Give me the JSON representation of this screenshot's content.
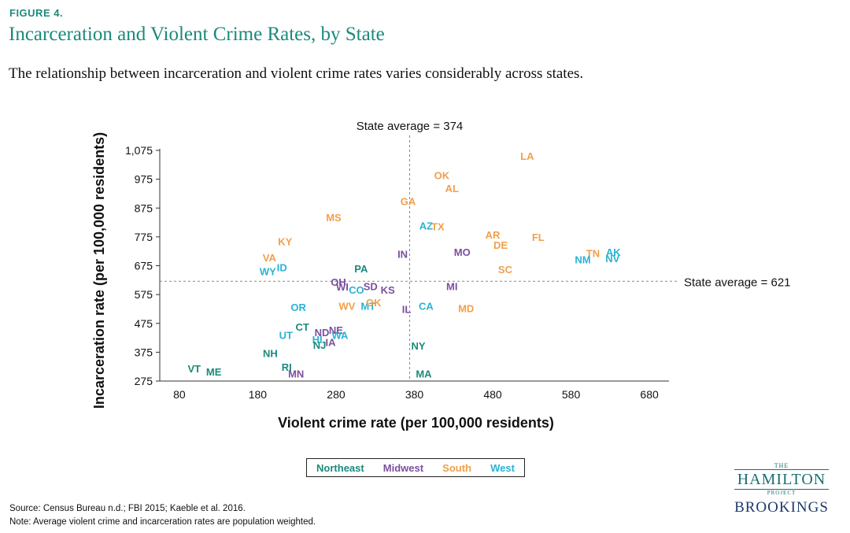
{
  "figure_label": "FIGURE 4.",
  "title": "Incarceration and Violent Crime Rates, by State",
  "subtitle": "The relationship between incarceration and violent crime rates varies considerably across states.",
  "source": "Source: Census Bureau n.d.; FBI 2015; Kaeble et al. 2016.",
  "note": "Note: Average violent crime and incarceration rates are population weighted.",
  "logo": {
    "the": "THE",
    "hamilton": "HAMILTON",
    "project": "PROJECT",
    "brookings": "BROOKINGS"
  },
  "colors": {
    "Northeast": "#1a8a7c",
    "Midwest": "#7b4f9e",
    "South": "#f0a04b",
    "West": "#29b3d4"
  },
  "chart_data": {
    "type": "scatter",
    "xlabel": "Violent crime rate (per 100,000 residents)",
    "ylabel": "Incarceration rate (per 100,000 residents)",
    "xlim": [
      55,
      705
    ],
    "ylim": [
      275,
      1075
    ],
    "x_ticks": [
      80,
      180,
      280,
      380,
      480,
      580,
      680
    ],
    "y_ticks": [
      {
        "value": 275,
        "label": "275"
      },
      {
        "value": 375,
        "label": "375"
      },
      {
        "value": 475,
        "label": "475"
      },
      {
        "value": 575,
        "label": "575"
      },
      {
        "value": 675,
        "label": "675"
      },
      {
        "value": 775,
        "label": "775"
      },
      {
        "value": 875,
        "label": "875"
      },
      {
        "value": 975,
        "label": "975"
      },
      {
        "value": 1075,
        "label": "1,075"
      }
    ],
    "reference_lines": [
      {
        "axis": "x",
        "value": 374,
        "label": "State average = 374"
      },
      {
        "axis": "y",
        "value": 621,
        "label": "State average = 621"
      }
    ],
    "legend": [
      "Northeast",
      "Midwest",
      "South",
      "West"
    ],
    "points": [
      {
        "label": "LA",
        "region": "South",
        "x": 524,
        "y": 1055
      },
      {
        "label": "OK",
        "region": "South",
        "x": 415,
        "y": 988
      },
      {
        "label": "AL",
        "region": "South",
        "x": 428,
        "y": 942
      },
      {
        "label": "GA",
        "region": "South",
        "x": 372,
        "y": 897
      },
      {
        "label": "MS",
        "region": "South",
        "x": 277,
        "y": 842
      },
      {
        "label": "AZ",
        "region": "West",
        "x": 395,
        "y": 813
      },
      {
        "label": "TX",
        "region": "South",
        "x": 410,
        "y": 810
      },
      {
        "label": "AR",
        "region": "South",
        "x": 480,
        "y": 781
      },
      {
        "label": "FL",
        "region": "South",
        "x": 538,
        "y": 773
      },
      {
        "label": "DE",
        "region": "South",
        "x": 490,
        "y": 746
      },
      {
        "label": "KY",
        "region": "South",
        "x": 215,
        "y": 758
      },
      {
        "label": "IN",
        "region": "Midwest",
        "x": 365,
        "y": 714
      },
      {
        "label": "MO",
        "region": "Midwest",
        "x": 441,
        "y": 722
      },
      {
        "label": "TN",
        "region": "South",
        "x": 608,
        "y": 718
      },
      {
        "label": "AK",
        "region": "West",
        "x": 634,
        "y": 721
      },
      {
        "label": "NM",
        "region": "West",
        "x": 595,
        "y": 696
      },
      {
        "label": "NV",
        "region": "West",
        "x": 633,
        "y": 699
      },
      {
        "label": "VA",
        "region": "South",
        "x": 195,
        "y": 702
      },
      {
        "label": "ID",
        "region": "West",
        "x": 211,
        "y": 668
      },
      {
        "label": "WY",
        "region": "West",
        "x": 193,
        "y": 654
      },
      {
        "label": "PA",
        "region": "Northeast",
        "x": 312,
        "y": 664
      },
      {
        "label": "SC",
        "region": "South",
        "x": 496,
        "y": 662
      },
      {
        "label": "OH",
        "region": "Midwest",
        "x": 283,
        "y": 617
      },
      {
        "label": "WI",
        "region": "Midwest",
        "x": 288,
        "y": 601
      },
      {
        "label": "SD",
        "region": "Midwest",
        "x": 324,
        "y": 603
      },
      {
        "label": "CO",
        "region": "West",
        "x": 306,
        "y": 590
      },
      {
        "label": "KS",
        "region": "Midwest",
        "x": 346,
        "y": 591
      },
      {
        "label": "MI",
        "region": "Midwest",
        "x": 428,
        "y": 603
      },
      {
        "label": "OR",
        "region": "West",
        "x": 232,
        "y": 530
      },
      {
        "label": "WV",
        "region": "South",
        "x": 294,
        "y": 535
      },
      {
        "label": "MT",
        "region": "West",
        "x": 321,
        "y": 535
      },
      {
        "label": "OK",
        "region": "South",
        "x": 328,
        "y": 546
      },
      {
        "label": "IL",
        "region": "Midwest",
        "x": 370,
        "y": 524
      },
      {
        "label": "CA",
        "region": "West",
        "x": 395,
        "y": 535
      },
      {
        "label": "MD",
        "region": "South",
        "x": 446,
        "y": 526
      },
      {
        "label": "CT",
        "region": "Northeast",
        "x": 237,
        "y": 462
      },
      {
        "label": "UT",
        "region": "West",
        "x": 216,
        "y": 434
      },
      {
        "label": "ND",
        "region": "Midwest",
        "x": 262,
        "y": 443
      },
      {
        "label": "NE",
        "region": "Midwest",
        "x": 280,
        "y": 451
      },
      {
        "label": "WA",
        "region": "West",
        "x": 285,
        "y": 433
      },
      {
        "label": "HI",
        "region": "West",
        "x": 256,
        "y": 419
      },
      {
        "label": "IA",
        "region": "Midwest",
        "x": 273,
        "y": 409
      },
      {
        "label": "NJ",
        "region": "Northeast",
        "x": 259,
        "y": 399
      },
      {
        "label": "NY",
        "region": "Northeast",
        "x": 385,
        "y": 397
      },
      {
        "label": "NH",
        "region": "Northeast",
        "x": 196,
        "y": 370
      },
      {
        "label": "VT",
        "region": "Northeast",
        "x": 99,
        "y": 317
      },
      {
        "label": "ME",
        "region": "Northeast",
        "x": 124,
        "y": 307
      },
      {
        "label": "RI",
        "region": "Northeast",
        "x": 217,
        "y": 323
      },
      {
        "label": "MN",
        "region": "Midwest",
        "x": 229,
        "y": 300
      },
      {
        "label": "MA",
        "region": "Northeast",
        "x": 392,
        "y": 300
      }
    ]
  }
}
